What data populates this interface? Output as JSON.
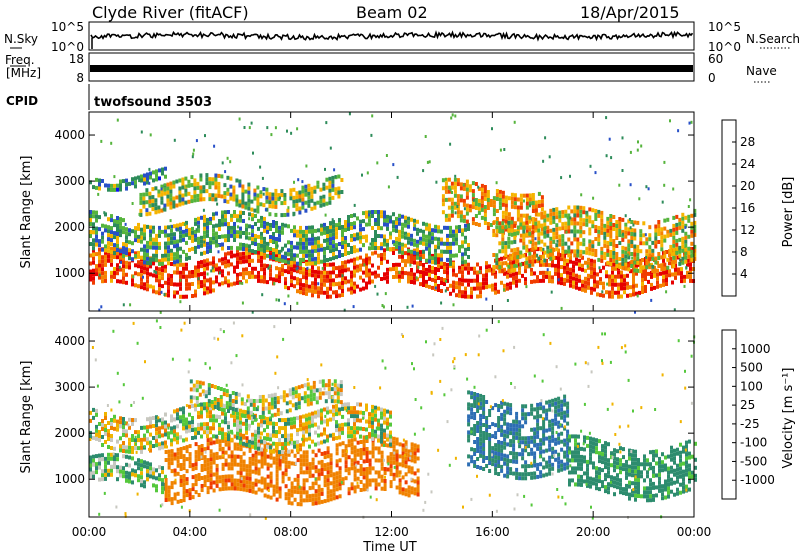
{
  "header": {
    "title": "Clyde River (fitACF)",
    "beam": "Beam 02",
    "date": "18/Apr/2015"
  },
  "noise_panel": {
    "left_label": "N.Sky",
    "right_label": "N.Search",
    "left_ticks": [
      "10^5",
      "10^0"
    ],
    "right_ticks": [
      "10^5",
      "10^0"
    ],
    "mean_level": 0.45
  },
  "freq_panel": {
    "left_label_top": "Freq.",
    "left_label_bottom": "[MHz]",
    "right_label": "Nave",
    "left_ticks": [
      "18",
      "8"
    ],
    "right_ticks": [
      "60",
      "0"
    ],
    "freq_value_mhz": 11
  },
  "cpid": {
    "label": "CPID",
    "value": "twofsound 3503"
  },
  "x_axis": {
    "label": "Time UT",
    "ticks": [
      "00:00",
      "04:00",
      "08:00",
      "12:00",
      "16:00",
      "20:00",
      "00:00"
    ],
    "range_hours": [
      0,
      24
    ]
  },
  "y_axis": {
    "label": "Slant Range [km]",
    "ticks": [
      1000,
      2000,
      3000,
      4000
    ],
    "range_km": [
      180,
      4500
    ]
  },
  "power_colorbar": {
    "label": "Power [dB]",
    "ticks": [
      "4",
      "8",
      "12",
      "16",
      "20",
      "24",
      "28"
    ],
    "colors": [
      "#0a14f0",
      "#2850c8",
      "#2d8c5a",
      "#55b43c",
      "#f5b400",
      "#f58200",
      "#f03c00",
      "#e60000"
    ]
  },
  "velocity_colorbar": {
    "label": "Velocity [m s⁻¹]",
    "ticks": [
      "1000",
      "500",
      "100",
      "25",
      "-25",
      "-100",
      "-500",
      "-1000"
    ],
    "colors": [
      "#1e28c8",
      "#2d6eb4",
      "#2d8c6e",
      "#55c83c",
      "#c8c8c0",
      "#f0b400",
      "#f08200",
      "#f03c00",
      "#e60000"
    ]
  },
  "chart_data": [
    {
      "type": "heatmap",
      "title": "",
      "xlabel": "Time UT",
      "ylabel": "Slant Range [km]",
      "zlabel": "Power [dB]",
      "xlim": [
        0,
        24
      ],
      "ylim": [
        180,
        4500
      ],
      "bands": [
        {
          "t": [
            0,
            24
          ],
          "range": [
            700,
            1400
          ],
          "level": 26
        },
        {
          "t": [
            0,
            15
          ],
          "range": [
            1400,
            2200
          ],
          "level": 12
        },
        {
          "t": [
            2,
            10
          ],
          "range": [
            2400,
            3000
          ],
          "level": 14
        },
        {
          "t": [
            0,
            3
          ],
          "range": [
            3000,
            3200
          ],
          "level": 10
        },
        {
          "t": [
            14,
            18
          ],
          "range": [
            2000,
            2900
          ],
          "level": 20
        },
        {
          "t": [
            16,
            24
          ],
          "range": [
            1200,
            2300
          ],
          "level": 18
        }
      ]
    },
    {
      "type": "heatmap",
      "title": "",
      "xlabel": "Time UT",
      "ylabel": "Slant Range [km]",
      "zlabel": "Velocity",
      "xlim": [
        0,
        24
      ],
      "ylim": [
        180,
        4500
      ],
      "bands": [
        {
          "t": [
            0,
            3
          ],
          "range": [
            800,
            1400
          ],
          "level": 100
        },
        {
          "t": [
            3,
            13
          ],
          "range": [
            600,
            1800
          ],
          "level": -400
        },
        {
          "t": [
            0,
            12
          ],
          "range": [
            1800,
            2500
          ],
          "level": 0
        },
        {
          "t": [
            4,
            10
          ],
          "range": [
            2500,
            3000
          ],
          "level": 0
        },
        {
          "t": [
            15,
            19
          ],
          "range": [
            1200,
            2800
          ],
          "level": 500
        },
        {
          "t": [
            19,
            24
          ],
          "range": [
            700,
            1800
          ],
          "level": 200
        }
      ]
    }
  ]
}
